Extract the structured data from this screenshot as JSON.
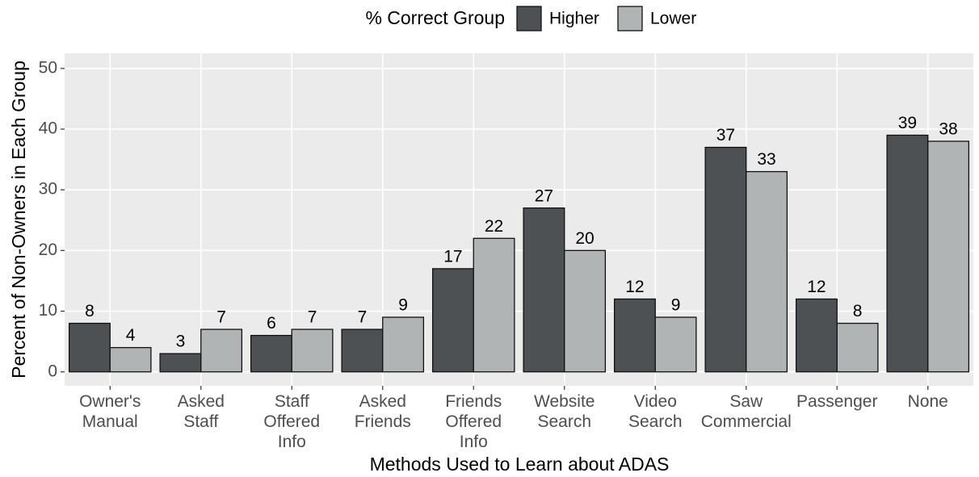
{
  "chart_data": {
    "type": "bar",
    "legend_title": "% Correct Group",
    "xlabel": "Methods Used to Learn about ADAS",
    "ylabel": "Percent of Non-Owners in Each Group",
    "categories": [
      "Owner's\nManual",
      "Asked\nStaff",
      "Staff\nOffered\nInfo",
      "Asked\nFriends",
      "Friends\nOffered\nInfo",
      "Website\nSearch",
      "Video\nSearch",
      "Saw\nCommercial",
      "Passenger",
      "None"
    ],
    "series": [
      {
        "name": "Higher",
        "color": "#4d5154",
        "values": [
          8,
          3,
          6,
          7,
          17,
          27,
          12,
          37,
          12,
          39
        ]
      },
      {
        "name": "Lower",
        "color": "#b1b4b4",
        "values": [
          4,
          7,
          7,
          9,
          22,
          20,
          9,
          33,
          8,
          38
        ]
      }
    ],
    "ylim": [
      -2.3,
      52.5
    ],
    "yticks": [
      0,
      10,
      20,
      30,
      40,
      50
    ],
    "grid": true,
    "legend": "top"
  }
}
